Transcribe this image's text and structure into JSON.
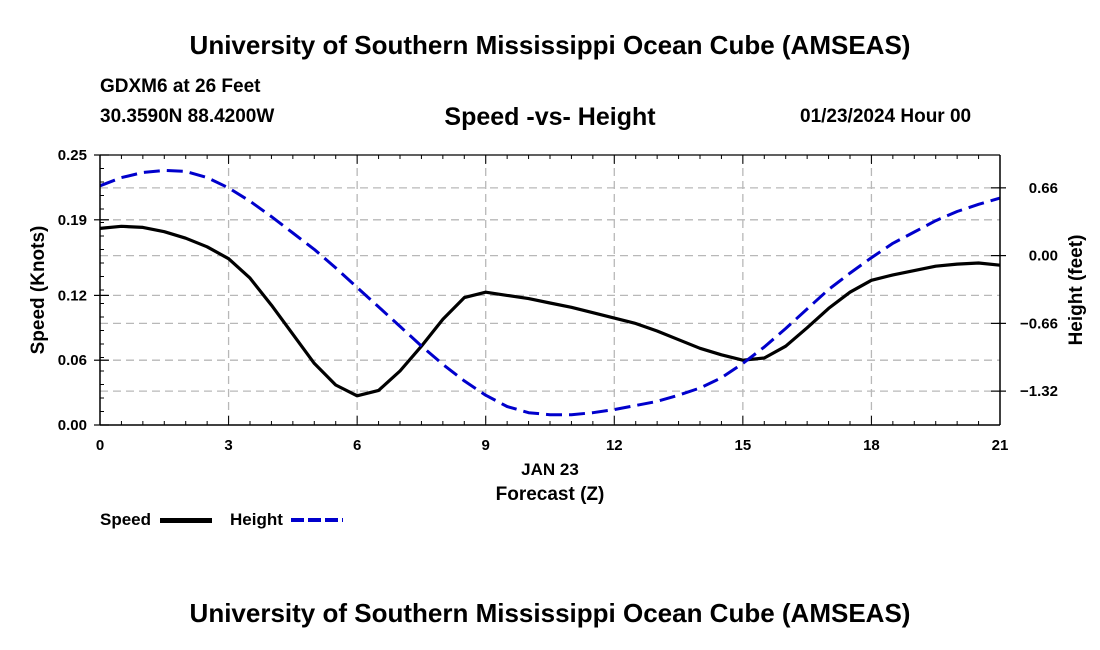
{
  "header": {
    "title": "University of Southern Mississippi Ocean Cube (AMSEAS)",
    "station": "GDXM6 at 26 Feet",
    "coords": "30.3590N  88.4200W",
    "date": "01/23/2024 Hour 00"
  },
  "footer": {
    "title": "University of Southern Mississippi Ocean Cube (AMSEAS)"
  },
  "legend": {
    "speed_label": "Speed",
    "height_label": "Height"
  },
  "chart_data": {
    "type": "line",
    "title": "Speed -vs- Height",
    "xlabel": "Forecast (Z)",
    "xlabel_date": "JAN 23",
    "ylabel_left": "Speed (Knots)",
    "ylabel_right": "Height (feet)",
    "xlim": [
      0,
      21
    ],
    "ylim_left": [
      0,
      0.25
    ],
    "ylim_right": [
      -1.65,
      0.98
    ],
    "x_ticks": [
      0,
      3,
      6,
      9,
      12,
      15,
      18,
      21
    ],
    "x_tick_labels": [
      "0",
      "3",
      "6",
      "9",
      "12",
      "15",
      "18",
      "21"
    ],
    "y_left_ticks": [
      0,
      0.06,
      0.12,
      0.19,
      0.25
    ],
    "y_left_tick_labels": [
      "0.00",
      "0.06",
      "0.12",
      "0.19",
      "0.25"
    ],
    "y_right_ticks": [
      0.66,
      0,
      -0.66,
      -1.32
    ],
    "y_right_tick_labels": [
      "0.66",
      "0.00",
      "−0.66",
      "−1.32"
    ],
    "grid": true,
    "series": [
      {
        "name": "Speed",
        "axis": "left",
        "color": "#000000",
        "style": "solid",
        "x": [
          0,
          0.5,
          1,
          1.5,
          2,
          2.5,
          3,
          3.5,
          4,
          4.5,
          5,
          5.5,
          6,
          6.5,
          7,
          7.5,
          8,
          8.5,
          9,
          9.5,
          10,
          10.5,
          11,
          11.5,
          12,
          12.5,
          13,
          13.5,
          14,
          14.5,
          15,
          15.5,
          16,
          16.5,
          17,
          17.5,
          18,
          18.5,
          19,
          19.5,
          20,
          20.5,
          21
        ],
        "values": [
          0.182,
          0.184,
          0.183,
          0.179,
          0.173,
          0.165,
          0.154,
          0.136,
          0.111,
          0.084,
          0.057,
          0.037,
          0.027,
          0.032,
          0.05,
          0.073,
          0.098,
          0.118,
          0.123,
          0.12,
          0.117,
          0.113,
          0.109,
          0.104,
          0.099,
          0.094,
          0.087,
          0.079,
          0.071,
          0.065,
          0.06,
          0.062,
          0.073,
          0.09,
          0.108,
          0.123,
          0.134,
          0.139,
          0.143,
          0.147,
          0.149,
          0.15,
          0.148
        ]
      },
      {
        "name": "Height",
        "axis": "right",
        "color": "#0000cc",
        "style": "dashed",
        "x": [
          0,
          0.5,
          1,
          1.5,
          2,
          2.5,
          3,
          3.5,
          4,
          4.5,
          5,
          5.5,
          6,
          6.5,
          7,
          7.5,
          8,
          8.5,
          9,
          9.5,
          10,
          10.5,
          11,
          11.5,
          12,
          12.5,
          13,
          13.5,
          14,
          14.5,
          15,
          15.5,
          16,
          16.5,
          17,
          17.5,
          18,
          18.5,
          19,
          19.5,
          20,
          20.5,
          21
        ],
        "values": [
          0.68,
          0.76,
          0.81,
          0.83,
          0.82,
          0.76,
          0.66,
          0.53,
          0.38,
          0.22,
          0.06,
          -0.12,
          -0.31,
          -0.5,
          -0.69,
          -0.88,
          -1.06,
          -1.22,
          -1.36,
          -1.47,
          -1.53,
          -1.55,
          -1.55,
          -1.53,
          -1.5,
          -1.46,
          -1.42,
          -1.36,
          -1.29,
          -1.19,
          -1.05,
          -0.89,
          -0.71,
          -0.52,
          -0.33,
          -0.17,
          -0.02,
          0.12,
          0.23,
          0.34,
          0.43,
          0.5,
          0.56
        ]
      }
    ]
  }
}
